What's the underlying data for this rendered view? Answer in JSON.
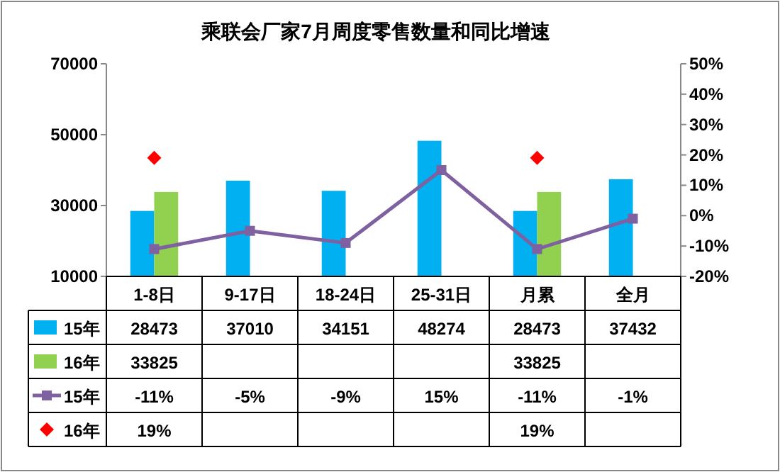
{
  "chart_data": {
    "type": "bar",
    "title": "乘联会厂家7月周度零售数量和同比增速",
    "categories": [
      "1-8日",
      "9-17日",
      "18-24日",
      "25-31日",
      "月累",
      "全月"
    ],
    "series": [
      {
        "name": "15年",
        "color": "#00b0f0",
        "values": [
          28473,
          37010,
          34151,
          48274,
          28473,
          37432
        ]
      },
      {
        "name": "16年",
        "color": "#92d050",
        "values": [
          33825,
          null,
          null,
          null,
          33825,
          null
        ]
      },
      {
        "name": "15年",
        "type": "line",
        "axis": "y2",
        "color": "#7f60a0",
        "marker": "square",
        "values": [
          -11,
          -5,
          -9,
          15,
          -11,
          -1
        ],
        "value_labels": [
          "-11%",
          "-5%",
          "-9%",
          "15%",
          "-11%",
          "-1%"
        ]
      },
      {
        "name": "16年",
        "type": "scatter",
        "axis": "y2",
        "color": "#ff0000",
        "marker": "diamond",
        "values": [
          19,
          null,
          null,
          null,
          19,
          null
        ],
        "value_labels": [
          "19%",
          null,
          null,
          null,
          "19%",
          null
        ]
      }
    ],
    "ylim": [
      10000,
      70000
    ],
    "yticks": [
      10000,
      30000,
      50000,
      70000
    ],
    "y2lim": [
      -20,
      50
    ],
    "y2ticks": [
      {
        "value": -20,
        "label": "-20%"
      },
      {
        "value": -10,
        "label": "-10%"
      },
      {
        "value": 0,
        "label": "0%"
      },
      {
        "value": 10,
        "label": "10%"
      },
      {
        "value": 20,
        "label": "20%"
      },
      {
        "value": 30,
        "label": "30%"
      },
      {
        "value": 40,
        "label": "40%"
      },
      {
        "value": 50,
        "label": "50%"
      }
    ],
    "data_labels": true,
    "legend": "bottom",
    "grid": false
  }
}
